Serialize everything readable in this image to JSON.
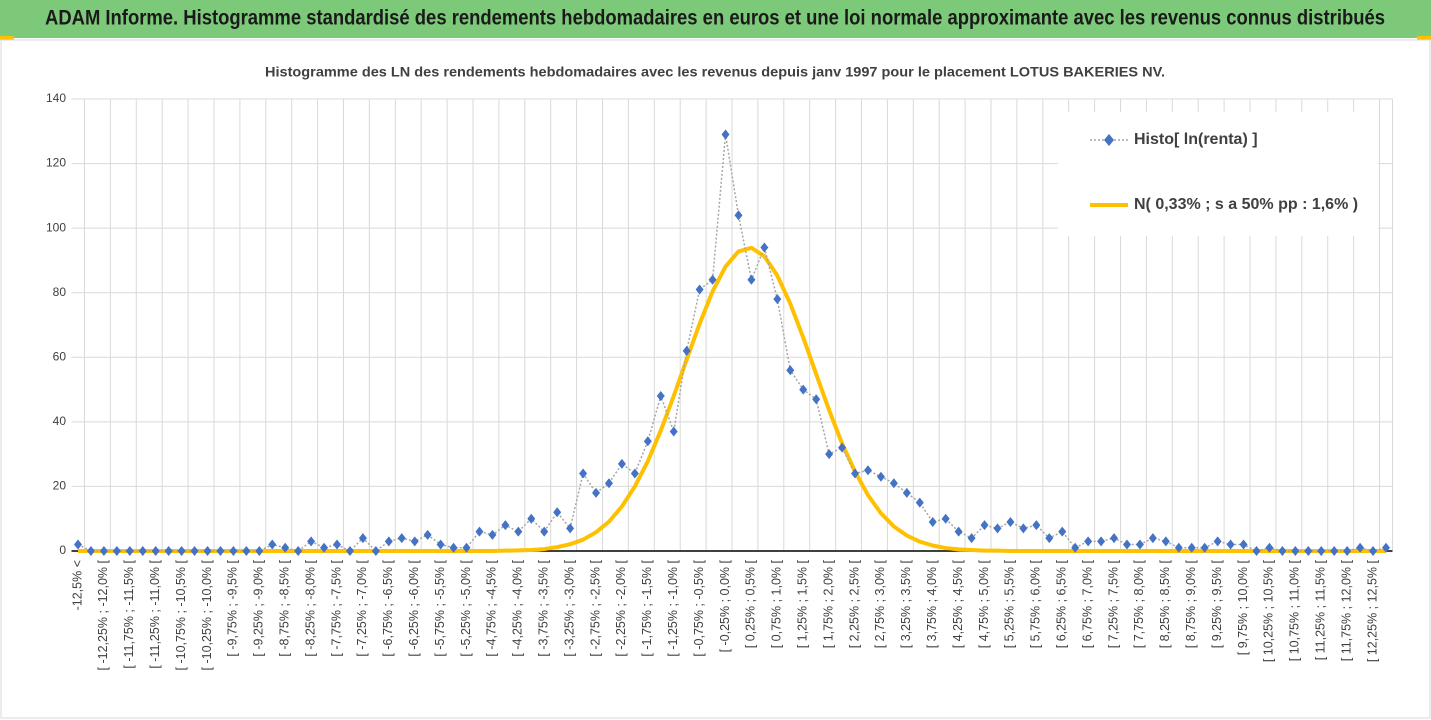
{
  "chart_data": {
    "type": "line",
    "header": "ADAM Informe. Histogramme standardisé des rendements hebdomadaires en euros et une loi normale approximante avec les revenus connus distribués",
    "title": "Histogramme des LN des rendements hebdomadaires avec les revenus depuis janv 1997 pour le placement LOTUS BAKERIES NV.",
    "categories": [
      "-12,5% <",
      null,
      "[ -12,25% ; -12,0% [",
      null,
      "[ -11,75% ; -11,5% [",
      null,
      "[ -11,25% ; -11,0% [",
      null,
      "[ -10,75% ; -10,5% [",
      null,
      "[ -10,25% ; -10,0% [",
      null,
      "[ -9,75% ; -9,5% [",
      null,
      "[ -9,25% ; -9,0% [",
      null,
      "[ -8,75% ; -8,5% [",
      null,
      "[ -8,25% ; -8,0% [",
      null,
      "[ -7,75% ; -7,5% [",
      null,
      "[ -7,25% ; -7,0% [",
      null,
      "[ -6,75% ; -6,5% [",
      null,
      "[ -6,25% ; -6,0% [",
      null,
      "[ -5,75% ; -5,5% [",
      null,
      "[ -5,25% ; -5,0% [",
      null,
      "[ -4,75% ; -4,5% [",
      null,
      "[ -4,25% ; -4,0% [",
      null,
      "[ -3,75% ; -3,5% [",
      null,
      "[ -3,25% ; -3,0% [",
      null,
      "[ -2,75% ; -2,5% [",
      null,
      "[ -2,25% ; -2,0% [",
      null,
      "[ -1,75% ; -1,5% [",
      null,
      "[ -1,25% ; -1,0% [",
      null,
      "[ -0,75% ; -0,5% [",
      null,
      "[ -0,25% ; 0,0% [",
      null,
      "[ 0,25% ; 0,5% [",
      null,
      "[ 0,75% ; 1,0% [",
      null,
      "[ 1,25% ; 1,5% [",
      null,
      "[ 1,75% ; 2,0% [",
      null,
      "[ 2,25% ; 2,5% [",
      null,
      "[ 2,75% ; 3,0% [",
      null,
      "[ 3,25% ; 3,5% [",
      null,
      "[ 3,75% ; 4,0% [",
      null,
      "[ 4,25% ; 4,5% [",
      null,
      "[ 4,75% ; 5,0% [",
      null,
      "[ 5,25% ; 5,5% [",
      null,
      "[ 5,75% ; 6,0% [",
      null,
      "[ 6,25% ; 6,5% [",
      null,
      "[ 6,75% ; 7,0% [",
      null,
      "[ 7,25% ; 7,5% [",
      null,
      "[ 7,75% ; 8,0% [",
      null,
      "[ 8,25% ; 8,5% [",
      null,
      "[ 8,75% ; 9,0% [",
      null,
      "[ 9,25% ; 9,5% [",
      null,
      "[ 9,75% ; 10,0% [",
      null,
      "[ 10,25% ; 10,5% [",
      null,
      "[ 10,75% ; 11,0% [",
      null,
      "[ 11,25% ; 11,5% [",
      null,
      "[ 11,75% ; 12,0% [",
      null,
      "[ 12,25% ; 12,5% [",
      null
    ],
    "series": [
      {
        "name": "Histo[ ln(renta) ]",
        "color": "#4472c4",
        "line_color": "#a6a6a6",
        "marker": "diamond",
        "values": [
          2,
          0,
          0,
          0,
          0,
          0,
          0,
          0,
          0,
          0,
          0,
          0,
          0,
          0,
          0,
          2,
          1,
          0,
          3,
          1,
          2,
          0,
          4,
          0,
          3,
          4,
          3,
          5,
          2,
          1,
          1,
          6,
          5,
          8,
          6,
          10,
          6,
          12,
          7,
          24,
          18,
          21,
          27,
          24,
          34,
          48,
          37,
          62,
          81,
          84,
          129,
          104,
          84,
          94,
          78,
          56,
          50,
          47,
          30,
          32,
          24,
          25,
          23,
          21,
          18,
          15,
          9,
          10,
          6,
          4,
          8,
          7,
          9,
          7,
          8,
          4,
          6,
          1,
          3,
          3,
          4,
          2,
          2,
          4,
          3,
          1,
          1,
          1,
          3,
          2,
          2,
          0,
          1,
          0,
          0,
          0,
          0,
          0,
          0,
          1,
          0,
          1
        ]
      },
      {
        "name": "N( 0,33% ; s a 50% pp : 1,6% )",
        "color": "#ffc000",
        "values": [
          0,
          0,
          0,
          0,
          0,
          0,
          0,
          0,
          0,
          0,
          0,
          0,
          0,
          0,
          0,
          0,
          0,
          0,
          0,
          0,
          0,
          0,
          0,
          0,
          0,
          0,
          0,
          0,
          0,
          0,
          0,
          0,
          0,
          0.1,
          0.2,
          0.3,
          0.6,
          1.2,
          2.1,
          3.5,
          5.8,
          9.1,
          13.8,
          20,
          27.8,
          37.3,
          48,
          59.3,
          70.4,
          80.4,
          88.1,
          92.8,
          93.9,
          91.3,
          85.3,
          76.6,
          66.1,
          54.8,
          43.6,
          33.3,
          24.6,
          17.3,
          11.7,
          7.6,
          4.8,
          2.9,
          1.7,
          0.9,
          0.5,
          0.3,
          0.1,
          0.1,
          0,
          0,
          0,
          0,
          0,
          0,
          0,
          0,
          0,
          0,
          0,
          0,
          0,
          0,
          0,
          0,
          0,
          0,
          0,
          0,
          0,
          0,
          0,
          0,
          0,
          0,
          0,
          0,
          0,
          0
        ]
      }
    ],
    "ylim": [
      0,
      140
    ],
    "yticks": [
      0,
      20,
      40,
      60,
      80,
      100,
      120,
      140
    ],
    "grid": true,
    "legend": "top-right"
  }
}
